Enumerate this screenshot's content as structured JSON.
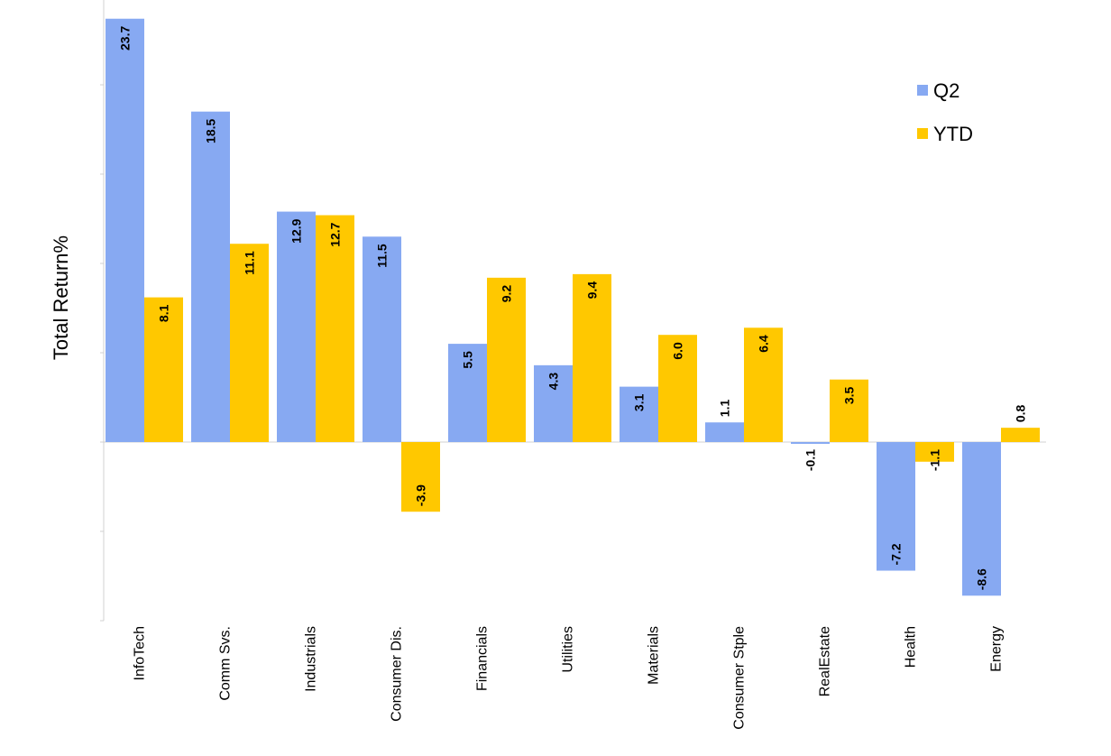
{
  "chart_data": {
    "type": "bar",
    "ylabel": "Total Return%",
    "xlabel": "",
    "ylim": [
      -10,
      24
    ],
    "y_gridlines": false,
    "legend_position": "top-right",
    "categories": [
      "InfoTech",
      "Comm Svs.",
      "Industrials",
      "Consumer Dis.",
      "Financials",
      "Utilities",
      "Materials",
      "Consumer Stple",
      "RealEstate",
      "Health",
      "Energy"
    ],
    "series": [
      {
        "name": "Q2",
        "color": "#87A9F2",
        "values": [
          23.7,
          18.5,
          12.9,
          11.5,
          5.5,
          4.3,
          3.1,
          1.1,
          -0.1,
          -7.2,
          -8.6
        ]
      },
      {
        "name": "YTD",
        "color": "#FFC800",
        "values": [
          8.1,
          11.1,
          12.7,
          -3.9,
          9.2,
          9.4,
          6.0,
          6.4,
          3.5,
          -1.1,
          0.8
        ]
      }
    ]
  }
}
